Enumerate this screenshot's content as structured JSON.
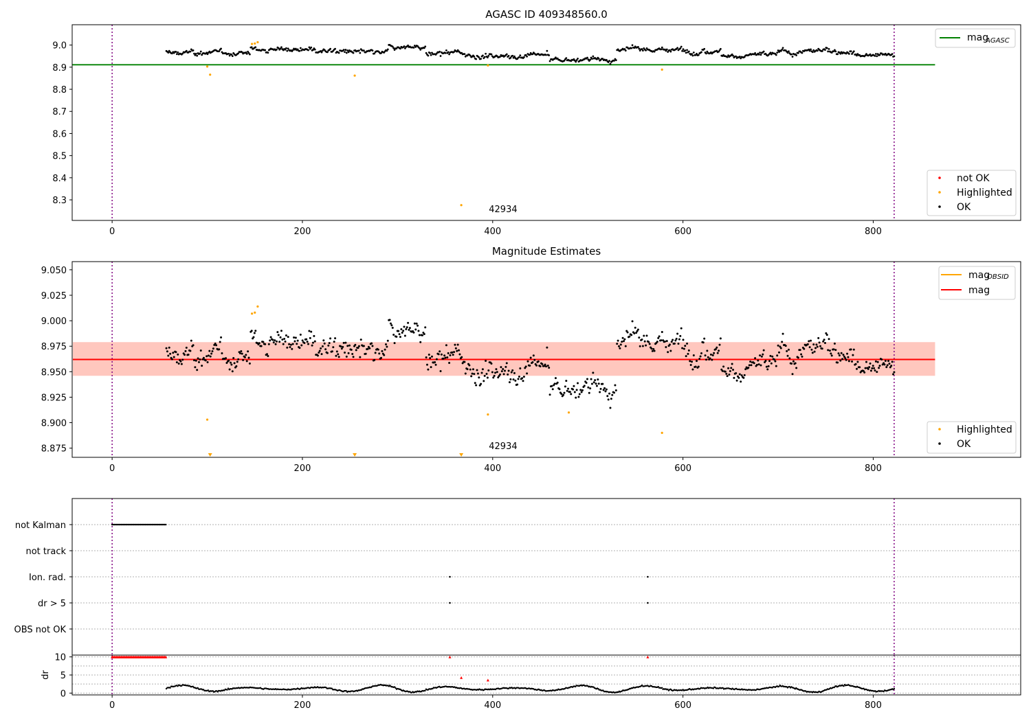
{
  "chart_data": [
    {
      "panel": "agasc",
      "type": "scatter",
      "title": "AGASC ID 409348560.0",
      "xlim": [
        -42,
        955
      ],
      "ylim": [
        8.207,
        9.092
      ],
      "xticks": [
        0,
        200,
        400,
        600,
        800
      ],
      "yticks": [
        8.3,
        8.4,
        8.5,
        8.6,
        8.7,
        8.8,
        8.9,
        9.0
      ],
      "ytick_labels": [
        "8.3",
        "8.4",
        "8.5",
        "8.6",
        "8.7",
        "8.8",
        "8.9",
        "9.0"
      ],
      "vlines": [
        0,
        822
      ],
      "obsid_label": {
        "text": "42934",
        "x": 396,
        "y": 8.245
      },
      "mag_agasc": {
        "value": 8.911,
        "x_range": [
          -42,
          865
        ],
        "color": "#008000"
      },
      "ok_points": {
        "x_range": [
          57,
          822
        ],
        "count": 760,
        "base": 8.965,
        "segments": [
          {
            "x": [
              57,
              100
            ],
            "mean": 8.965
          },
          {
            "x": [
              100,
              145
            ],
            "mean": 8.962
          },
          {
            "x": [
              145,
              210
            ],
            "mean": 8.982
          },
          {
            "x": [
              210,
              260
            ],
            "mean": 8.972
          },
          {
            "x": [
              260,
              290
            ],
            "mean": 8.962
          },
          {
            "x": [
              290,
              330
            ],
            "mean": 8.988
          },
          {
            "x": [
              330,
              390
            ],
            "mean": 8.958
          },
          {
            "x": [
              390,
              460
            ],
            "mean": 8.95
          },
          {
            "x": [
              460,
              530
            ],
            "mean": 8.935
          },
          {
            "x": [
              530,
              640
            ],
            "mean": 8.978
          },
          {
            "x": [
              640,
              700
            ],
            "mean": 8.955
          },
          {
            "x": [
              700,
              780
            ],
            "mean": 8.972
          },
          {
            "x": [
              780,
              822
            ],
            "mean": 8.952
          }
        ]
      },
      "highlighted_points": [
        {
          "x": 100,
          "y": 8.903
        },
        {
          "x": 103,
          "y": 8.866
        },
        {
          "x": 147,
          "y": 9.005
        },
        {
          "x": 150,
          "y": 9.007
        },
        {
          "x": 153,
          "y": 9.013
        },
        {
          "x": 255,
          "y": 8.862
        },
        {
          "x": 367,
          "y": 8.276
        },
        {
          "x": 395,
          "y": 8.908
        },
        {
          "x": 578,
          "y": 8.889
        }
      ],
      "legend_top": [
        {
          "label": "mag",
          "sub": "AGASC",
          "color": "#008000"
        }
      ],
      "legend_bottom": [
        {
          "label": "not OK",
          "color": "#ff0000"
        },
        {
          "label": "Highlighted",
          "color": "#ffa500"
        },
        {
          "label": "OK",
          "color": "#000000"
        }
      ]
    },
    {
      "panel": "estimates",
      "type": "scatter",
      "title": "Magnitude Estimates",
      "xlim": [
        -42,
        955
      ],
      "ylim": [
        8.866,
        9.058
      ],
      "xticks": [
        0,
        200,
        400,
        600,
        800
      ],
      "yticks": [
        8.875,
        8.9,
        8.925,
        8.95,
        8.975,
        9.0,
        9.025,
        9.05
      ],
      "ytick_labels": [
        "8.875",
        "8.900",
        "8.925",
        "8.950",
        "8.975",
        "9.000",
        "9.025",
        "9.050"
      ],
      "vlines": [
        0,
        822
      ],
      "obsid_label": {
        "text": "42934",
        "x": 396,
        "y": 8.874
      },
      "mag": {
        "value": 8.962,
        "color": "#ff0000"
      },
      "mag_band": {
        "low": 8.946,
        "high": 8.979,
        "x_range": [
          -42,
          865
        ]
      },
      "mag_obsid_band": {
        "low": 8.946,
        "high": 8.979,
        "x_range": [
          -42,
          865
        ]
      },
      "highlighted_points": [
        {
          "x": 100,
          "y": 8.903
        },
        {
          "x": 147,
          "y": 9.007
        },
        {
          "x": 150,
          "y": 9.008
        },
        {
          "x": 153,
          "y": 9.014
        },
        {
          "x": 395,
          "y": 8.908
        },
        {
          "x": 480,
          "y": 8.91
        },
        {
          "x": 578,
          "y": 8.89
        }
      ],
      "offscale_markers": [
        {
          "x": 103
        },
        {
          "x": 255
        },
        {
          "x": 367
        }
      ],
      "legend_top": [
        {
          "label": "mag",
          "sub": "OBSID",
          "color": "#ffa500"
        },
        {
          "label": "mag",
          "color": "#ff0000"
        }
      ],
      "legend_bottom": [
        {
          "label": "Highlighted",
          "color": "#ffa500"
        },
        {
          "label": "OK",
          "color": "#000000"
        }
      ]
    },
    {
      "panel": "flags",
      "type": "scatter",
      "xlim": [
        -42,
        955
      ],
      "xticks": [
        0,
        200,
        400,
        600,
        800
      ],
      "vlines": [
        0,
        822
      ],
      "flag_rows": [
        "not Kalman",
        "not track",
        "Ion. rad.",
        "dr > 5",
        "OBS not OK"
      ],
      "flag_events": [
        {
          "row": "not Kalman",
          "x_range": [
            0,
            57
          ]
        },
        {
          "row": "Ion. rad.",
          "x": [
            355,
            563
          ]
        },
        {
          "row": "dr > 5",
          "x": [
            355,
            563
          ]
        }
      ]
    },
    {
      "panel": "dr",
      "type": "scatter",
      "ylabel": "dr",
      "ylim": [
        -0.5,
        10.5
      ],
      "yticks": [
        0,
        5,
        10
      ],
      "ytick_labels": [
        "0",
        "5",
        "10"
      ],
      "xlim": [
        -42,
        955
      ],
      "xticks": [
        0,
        200,
        400,
        600,
        800
      ],
      "xtick_labels": [
        "0",
        "200",
        "400",
        "600",
        "800"
      ],
      "vlines": [
        0,
        822
      ],
      "red_points": [
        {
          "x_range": [
            0,
            57
          ],
          "y": 10
        },
        {
          "x": 355,
          "y": 10
        },
        {
          "x": 563,
          "y": 10
        },
        {
          "x": 367,
          "y": 4.3
        },
        {
          "x": 395,
          "y": 3.6
        }
      ],
      "black_points": {
        "x_range": [
          57,
          822
        ],
        "mean": 1.2,
        "amp": 1.0
      }
    }
  ]
}
